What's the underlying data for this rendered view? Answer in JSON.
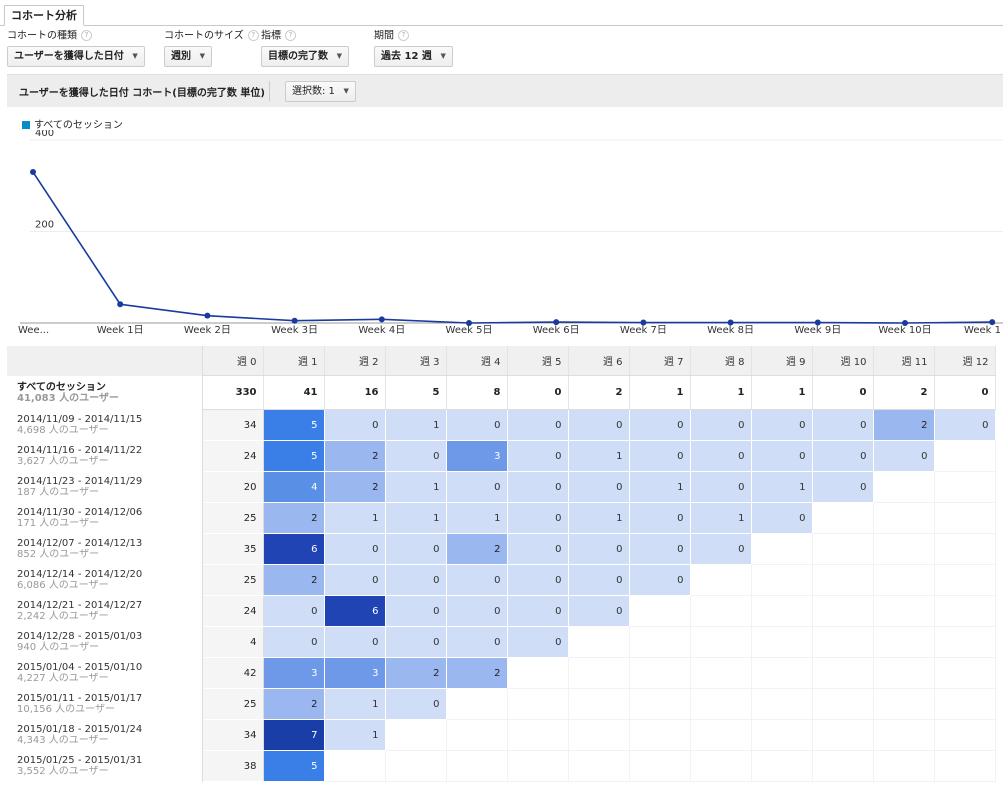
{
  "tab": {
    "label": "コホート分析"
  },
  "controls": [
    {
      "label": "コホートの種類",
      "value": "ユーザーを獲得した日付"
    },
    {
      "label": "コホートのサイズ",
      "value": "週別"
    },
    {
      "label": "指標",
      "value": "目標の完了数"
    },
    {
      "label": "期間",
      "value": "過去 12 週"
    }
  ],
  "panel": {
    "title": "ユーザーを獲得した日付 コホート(目標の完了数 単位)",
    "selection": "選択数: 1"
  },
  "legend": {
    "label": "すべてのセッション",
    "color": "#058dc7"
  },
  "chart_data": {
    "type": "line",
    "x": [
      "Wee...",
      "Week 1日",
      "Week 2日",
      "Week 3日",
      "Week 4日",
      "Week 5日",
      "Week 6日",
      "Week 7日",
      "Week 8日",
      "Week 9日",
      "Week 10日",
      "Week 1"
    ],
    "series": [
      {
        "name": "すべてのセッション",
        "values": [
          330,
          41,
          16,
          5,
          8,
          0,
          2,
          1,
          1,
          1,
          0,
          2
        ]
      }
    ],
    "yticks": [
      200,
      400
    ],
    "ylim": [
      0,
      400
    ],
    "color": "#1a3a9e"
  },
  "table": {
    "columns": [
      "週 0",
      "週 1",
      "週 2",
      "週 3",
      "週 4",
      "週 5",
      "週 6",
      "週 7",
      "週 8",
      "週 9",
      "週 10",
      "週 11",
      "週 12"
    ],
    "total": {
      "label": "すべてのセッション",
      "users": "41,083 人のユーザー",
      "values": [
        "330",
        "41",
        "16",
        "5",
        "8",
        "0",
        "2",
        "1",
        "1",
        "1",
        "0",
        "2",
        "0"
      ]
    },
    "rows": [
      {
        "date": "2014/11/09 - 2014/11/15",
        "users": "4,698 人のユーザー"
      },
      {
        "date": "2014/11/16 - 2014/11/22",
        "users": "3,627 人のユーザー"
      },
      {
        "date": "2014/11/23 - 2014/11/29",
        "users": "187 人のユーザー"
      },
      {
        "date": "2014/11/30 - 2014/12/06",
        "users": "171 人のユーザー"
      },
      {
        "date": "2014/12/07 - 2014/12/13",
        "users": "852 人のユーザー"
      },
      {
        "date": "2014/12/14 - 2014/12/20",
        "users": "6,086 人のユーザー"
      },
      {
        "date": "2014/12/21 - 2014/12/27",
        "users": "2,242 人のユーザー"
      },
      {
        "date": "2014/12/28 - 2015/01/03",
        "users": "940 人のユーザー"
      },
      {
        "date": "2015/01/04 - 2015/01/10",
        "users": "4,227 人のユーザー"
      },
      {
        "date": "2015/01/11 - 2015/01/17",
        "users": "10,156 人のユーザー"
      },
      {
        "date": "2015/01/18 - 2015/01/24",
        "users": "4,343 人のユーザー"
      },
      {
        "date": "2015/01/25 - 2015/01/31",
        "users": "3,552 人のユーザー"
      }
    ],
    "cells": [
      [
        "34",
        "5",
        "0",
        "1",
        "0",
        "0",
        "0",
        "0",
        "0",
        "0",
        "0",
        "2",
        "0"
      ],
      [
        "24",
        "5",
        "2",
        "0",
        "3",
        "0",
        "1",
        "0",
        "0",
        "0",
        "0",
        "0"
      ],
      [
        "20",
        "4",
        "2",
        "1",
        "0",
        "0",
        "0",
        "1",
        "0",
        "1",
        "0"
      ],
      [
        "25",
        "2",
        "1",
        "1",
        "1",
        "0",
        "1",
        "0",
        "1",
        "0"
      ],
      [
        "35",
        "6",
        "0",
        "0",
        "2",
        "0",
        "0",
        "0",
        "0"
      ],
      [
        "25",
        "2",
        "0",
        "0",
        "0",
        "0",
        "0",
        "0"
      ],
      [
        "24",
        "0",
        "6",
        "0",
        "0",
        "0",
        "0"
      ],
      [
        "4",
        "0",
        "0",
        "0",
        "0",
        "0"
      ],
      [
        "42",
        "3",
        "3",
        "2",
        "2"
      ],
      [
        "25",
        "2",
        "1",
        "0"
      ],
      [
        "34",
        "7",
        "1"
      ],
      [
        "38",
        "5"
      ]
    ]
  }
}
